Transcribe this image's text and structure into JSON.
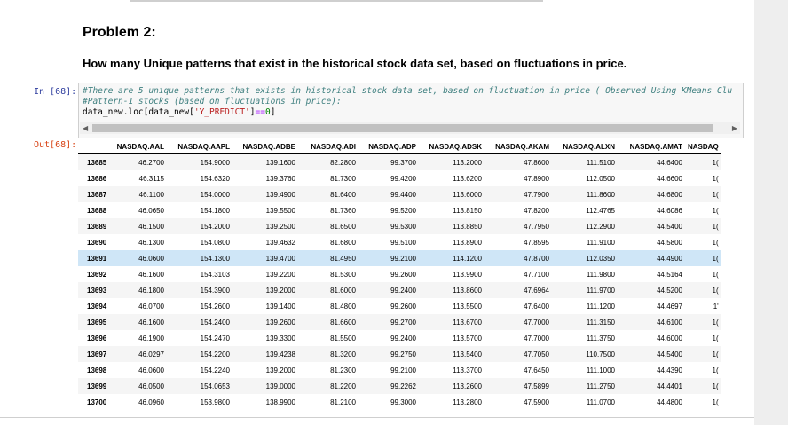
{
  "heading": "Problem 2:",
  "question": "How many Unique patterns that exist in the historical stock data set, based on fluctuations in price.",
  "in_prompt": "In [68]:",
  "out_prompt": "Out[68]:",
  "code": {
    "line1": "#There are 5 unique patterns that exists in historical stock data set, based on fluctuation in price ( Observed Using KMeans Clu",
    "line2": "#Pattern-1 stocks (based on fluctuations in price):",
    "line3_a": "data_new.loc[data_new[",
    "line3_str": "'Y_PREDICT'",
    "line3_b": "]",
    "line3_op": "==",
    "line3_num": "0",
    "line3_c": "]"
  },
  "scroll": {
    "left_arrow": "◀",
    "right_arrow": "▶"
  },
  "table": {
    "columns": [
      "",
      "NASDAQ.AAL",
      "NASDAQ.AAPL",
      "NASDAQ.ADBE",
      "NASDAQ.ADI",
      "NASDAQ.ADP",
      "NASDAQ.ADSK",
      "NASDAQ.AKAM",
      "NASDAQ.ALXN",
      "NASDAQ.AMAT",
      "NASDAQ"
    ],
    "rows": [
      [
        "13685",
        "46.2700",
        "154.9000",
        "139.1600",
        "82.2800",
        "99.3700",
        "113.2000",
        "47.8600",
        "111.5100",
        "44.6400",
        "1("
      ],
      [
        "13686",
        "46.3115",
        "154.6320",
        "139.3760",
        "81.7300",
        "99.4200",
        "113.6200",
        "47.8900",
        "112.0500",
        "44.6600",
        "1("
      ],
      [
        "13687",
        "46.1100",
        "154.0000",
        "139.4900",
        "81.6400",
        "99.4400",
        "113.6000",
        "47.7900",
        "111.8600",
        "44.6800",
        "1("
      ],
      [
        "13688",
        "46.0650",
        "154.1800",
        "139.5500",
        "81.7360",
        "99.5200",
        "113.8150",
        "47.8200",
        "112.4765",
        "44.6086",
        "1("
      ],
      [
        "13689",
        "46.1500",
        "154.2000",
        "139.2500",
        "81.6500",
        "99.5300",
        "113.8850",
        "47.7950",
        "112.2900",
        "44.5400",
        "1("
      ],
      [
        "13690",
        "46.1300",
        "154.0800",
        "139.4632",
        "81.6800",
        "99.5100",
        "113.8900",
        "47.8595",
        "111.9100",
        "44.5800",
        "1("
      ],
      [
        "13691",
        "46.0600",
        "154.1300",
        "139.4700",
        "81.4950",
        "99.2100",
        "114.1200",
        "47.8700",
        "112.0350",
        "44.4900",
        "1("
      ],
      [
        "13692",
        "46.1600",
        "154.3103",
        "139.2200",
        "81.5300",
        "99.2600",
        "113.9900",
        "47.7100",
        "111.9800",
        "44.5164",
        "1("
      ],
      [
        "13693",
        "46.1800",
        "154.3900",
        "139.2000",
        "81.6000",
        "99.2400",
        "113.8600",
        "47.6964",
        "111.9700",
        "44.5200",
        "1("
      ],
      [
        "13694",
        "46.0700",
        "154.2600",
        "139.1400",
        "81.4800",
        "99.2600",
        "113.5500",
        "47.6400",
        "111.1200",
        "44.4697",
        "1'"
      ],
      [
        "13695",
        "46.1600",
        "154.2400",
        "139.2600",
        "81.6600",
        "99.2700",
        "113.6700",
        "47.7000",
        "111.3150",
        "44.6100",
        "1("
      ],
      [
        "13696",
        "46.1900",
        "154.2470",
        "139.3300",
        "81.5500",
        "99.2400",
        "113.5700",
        "47.7000",
        "111.3750",
        "44.6000",
        "1("
      ],
      [
        "13697",
        "46.0297",
        "154.2200",
        "139.4238",
        "81.3200",
        "99.2750",
        "113.5400",
        "47.7050",
        "110.7500",
        "44.5400",
        "1("
      ],
      [
        "13698",
        "46.0600",
        "154.2240",
        "139.2000",
        "81.2300",
        "99.2100",
        "113.3700",
        "47.6450",
        "111.1000",
        "44.4390",
        "1("
      ],
      [
        "13699",
        "46.0500",
        "154.0653",
        "139.0000",
        "81.2200",
        "99.2262",
        "113.2600",
        "47.5899",
        "111.2750",
        "44.4401",
        "1("
      ],
      [
        "13700",
        "46.0960",
        "153.9800",
        "138.9900",
        "81.2100",
        "99.3000",
        "113.2800",
        "47.5900",
        "111.0700",
        "44.4800",
        "1("
      ]
    ],
    "highlight_row": 6
  }
}
